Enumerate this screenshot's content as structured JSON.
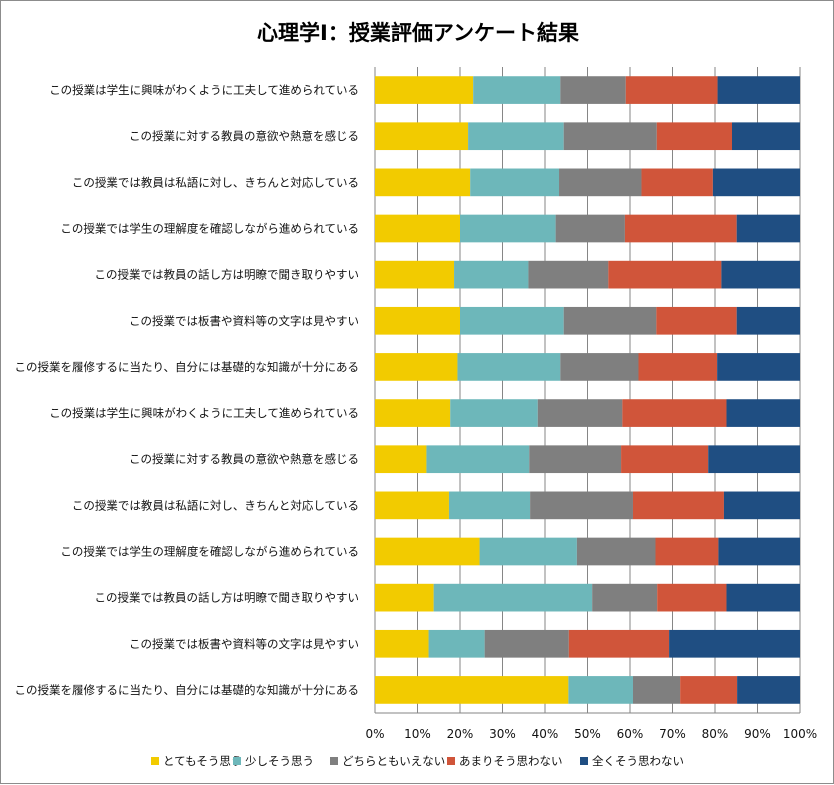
{
  "chart_data": {
    "type": "bar",
    "orientation": "horizontal",
    "stacked": "percent",
    "title": "心理学Ⅰ：授業評価アンケート結果",
    "categories": [
      "この授業は学生に興味がわくように工夫して進められている",
      "この授業に対する教員の意欲や熱意を感じる",
      "この授業では教員は私語に対し、きちんと対応している",
      "この授業では学生の理解度を確認しながら進められている",
      "この授業では教員の話し方は明瞭で聞き取りやすい",
      "この授業では板書や資料等の文字は見やすい",
      "この授業を履修するに当たり、自分には基礎的な知識が十分にある",
      "この授業は学生に興味がわくように工夫して進められている",
      "この授業に対する教員の意欲や熱意を感じる",
      "この授業では教員は私語に対し、きちんと対応している",
      "この授業では学生の理解度を確認しながら進められている",
      "この授業では教員の話し方は明瞭で聞き取りやすい",
      "この授業では板書や資料等の文字は見やすい",
      "この授業を履修するに当たり、自分には基礎的な知識が十分にある"
    ],
    "series": [
      {
        "name": "とてもそう思う",
        "color": "#f2cb00",
        "values": [
          23.1,
          21.9,
          22.4,
          20.0,
          18.6,
          20.0,
          19.4,
          17.7,
          12.1,
          17.4,
          24.6,
          13.8,
          12.6,
          45.5
        ]
      },
      {
        "name": "少しそう思う",
        "color": "#6db7ba",
        "values": [
          20.5,
          22.5,
          20.9,
          22.5,
          17.5,
          24.4,
          24.2,
          20.6,
          24.2,
          19.1,
          22.9,
          37.3,
          13.2,
          15.2
        ]
      },
      {
        "name": "どちらともいえない",
        "color": "#7f7f7f",
        "values": [
          15.4,
          21.9,
          19.4,
          16.3,
          18.8,
          21.8,
          18.4,
          19.9,
          21.6,
          24.2,
          18.5,
          15.3,
          19.8,
          11.1
        ]
      },
      {
        "name": "あまりそう思わない",
        "color": "#d0553a",
        "values": [
          21.6,
          17.7,
          16.8,
          26.3,
          26.6,
          18.9,
          18.5,
          24.5,
          20.5,
          21.4,
          14.8,
          16.3,
          23.6,
          13.4
        ]
      },
      {
        "name": "全くそう思わない",
        "color": "#1f4e82",
        "values": [
          19.4,
          16.0,
          20.5,
          14.9,
          18.5,
          14.9,
          19.5,
          17.3,
          21.6,
          17.9,
          19.2,
          17.3,
          30.8,
          14.8
        ]
      }
    ],
    "xlim": [
      0,
      100
    ],
    "x_ticks": [
      "0%",
      "10%",
      "20%",
      "30%",
      "40%",
      "50%",
      "60%",
      "70%",
      "80%",
      "90%",
      "100%"
    ],
    "grid": true,
    "legend_position": "bottom"
  }
}
